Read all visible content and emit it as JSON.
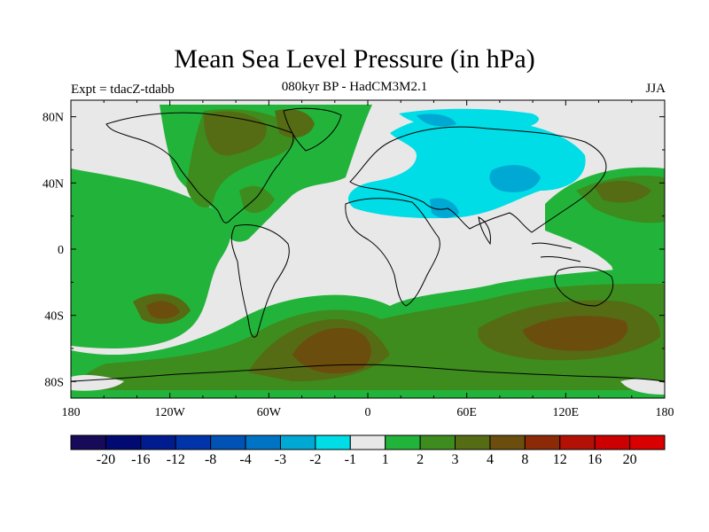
{
  "title": "Mean Sea Level Pressure (in hPa)",
  "subtitle": "080kyr BP - HadCM3M2.1",
  "experiment": "Expt = tdacZ-tdabb",
  "season": "JJA",
  "chart_data": {
    "type": "map",
    "projection": "cylindrical equidistant",
    "lon_range": [
      -180,
      180
    ],
    "lat_range": [
      -90,
      90
    ],
    "x_ticks": [
      "180",
      "120W",
      "60W",
      "0",
      "60E",
      "120E",
      "180"
    ],
    "y_ticks": [
      "80N",
      "40N",
      "0",
      "40S",
      "80S"
    ],
    "colorbar": {
      "labels": [
        "-20",
        "-16",
        "-12",
        "-8",
        "-4",
        "-3",
        "-2",
        "-1",
        "1",
        "2",
        "3",
        "4",
        "8",
        "12",
        "16",
        "20"
      ],
      "colors": [
        "#160a59",
        "#000a70",
        "#001c8f",
        "#0034a8",
        "#0052b5",
        "#0074c4",
        "#00a8d4",
        "#00dde6",
        "#e8e8e8",
        "#22b43a",
        "#3e8b1e",
        "#556b14",
        "#6b4d0e",
        "#8c2a08",
        "#b31105",
        "#cc0000",
        "#d80000"
      ]
    },
    "anomaly_regions": [
      {
        "name": "tropical-atlantic-north-america",
        "level": "2 to 3",
        "color": "#3e8b1e"
      },
      {
        "name": "eurasia-low",
        "level": "-2 to -1",
        "color": "#00dde6"
      },
      {
        "name": "southern-ocean-high",
        "level": "4 to 8",
        "color": "#6b4d0e"
      },
      {
        "name": "west-pacific-high",
        "level": "3 to 4",
        "color": "#556b14"
      }
    ]
  }
}
